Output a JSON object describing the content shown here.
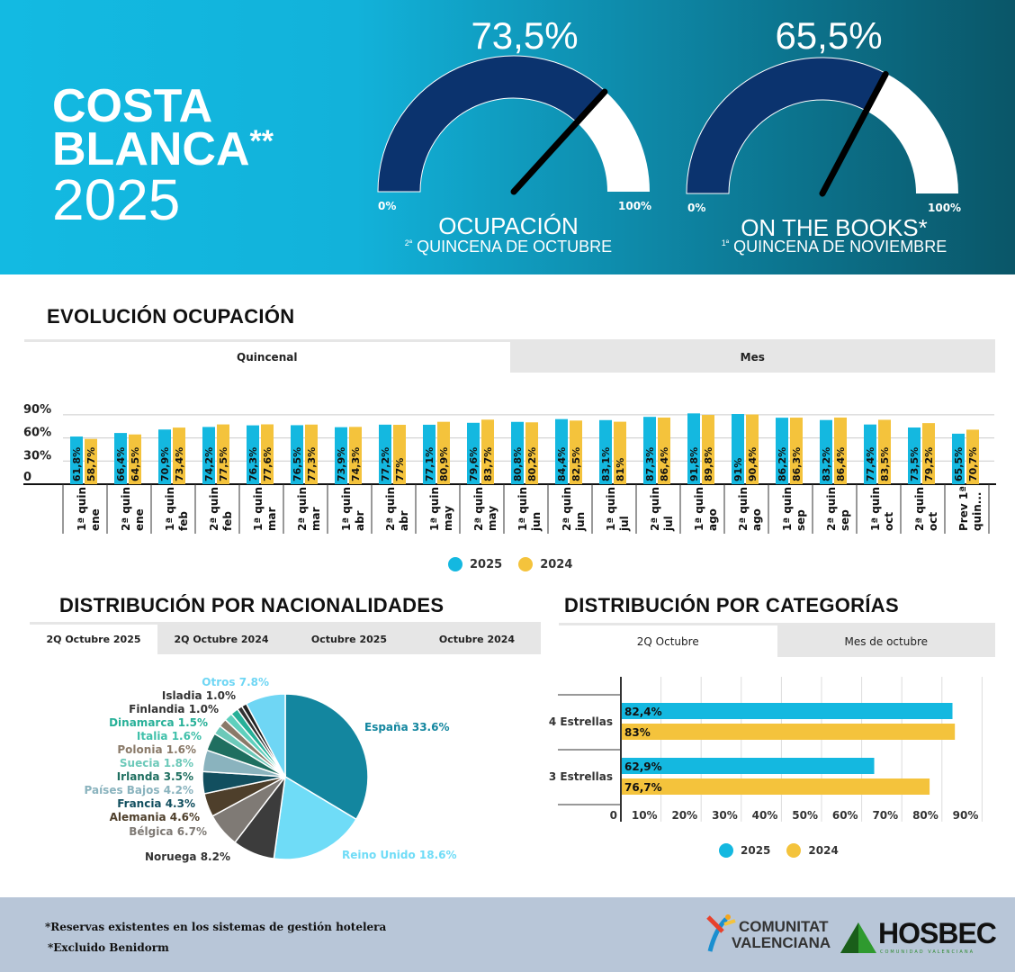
{
  "header": {
    "title_line1": "COSTA",
    "title_line2": "BLANCA",
    "title_mark": "**",
    "title_year": "2025",
    "gauges": [
      {
        "value_label": "73,5%",
        "value": 73.5,
        "min_label": "0%",
        "max_label": "100%",
        "name": "OCUPACIÓN",
        "sub_ord": "2ª",
        "sub": "QUINCENA DE OCTUBRE"
      },
      {
        "value_label": "65,5%",
        "value": 65.5,
        "min_label": "0%",
        "max_label": "100%",
        "name": "ON THE BOOKS*",
        "sub_ord": "1ª",
        "sub": "QUINCENA DE NOVIEMBRE"
      }
    ],
    "colors": {
      "fill": "#0b336e",
      "rest": "#ffffff",
      "needle": "#000000"
    }
  },
  "evolution": {
    "title": "EVOLUCIÓN OCUPACIÓN",
    "tabs": [
      {
        "label": "Quincenal",
        "active": true
      },
      {
        "label": "Mes",
        "active": false
      }
    ]
  },
  "nationalities": {
    "title": "DISTRIBUCIÓN POR NACIONALIDADES",
    "tabs": [
      {
        "label": "2Q Octubre 2025",
        "active": true
      },
      {
        "label": "2Q Octubre 2024"
      },
      {
        "label": "Octubre 2025"
      },
      {
        "label": "Octubre 2024"
      }
    ]
  },
  "categories": {
    "title": "DISTRIBUCIÓN POR CATEGORÍAS",
    "tabs": [
      {
        "label": "2Q Octubre",
        "active": true
      },
      {
        "label": "Mes de octubre"
      }
    ]
  },
  "chart_data": [
    {
      "type": "bar",
      "y_ticks": [
        "0",
        "30%",
        "60%",
        "90%"
      ],
      "ylim": [
        0,
        90
      ],
      "grid": true,
      "legend": "bottom",
      "categories": [
        [
          "1ª quin",
          "ene"
        ],
        [
          "2ª quin",
          "ene"
        ],
        [
          "1ª quin",
          "feb"
        ],
        [
          "2ª quin",
          "feb"
        ],
        [
          "1ª quin",
          "mar"
        ],
        [
          "2ª quin",
          "mar"
        ],
        [
          "1ª quin",
          "abr"
        ],
        [
          "2ª quin",
          "abr"
        ],
        [
          "1ª quin",
          "may"
        ],
        [
          "2ª quin",
          "may"
        ],
        [
          "1ª quin",
          "jun"
        ],
        [
          "2ª quin",
          "jun"
        ],
        [
          "1ª quin",
          "jul"
        ],
        [
          "2ª quin",
          "jul"
        ],
        [
          "1ª quin",
          "ago"
        ],
        [
          "2ª quin",
          "ago"
        ],
        [
          "1ª quin",
          "sep"
        ],
        [
          "2ª quin",
          "sep"
        ],
        [
          "1ª quin",
          "oct"
        ],
        [
          "2ª quin",
          "oct"
        ],
        [
          "Prev 1ª",
          "quin..."
        ]
      ],
      "series": [
        {
          "name": "2025",
          "color": "#14b8e0",
          "values": [
            61.8,
            66.4,
            70.9,
            74.2,
            76.3,
            76.5,
            73.9,
            77.2,
            77.1,
            79.6,
            80.8,
            84.4,
            83.1,
            87.3,
            91.8,
            91,
            86.2,
            83.2,
            77.4,
            73.5,
            65.5
          ],
          "labels": [
            "61,8%",
            "66,4%",
            "70,9%",
            "74,2%",
            "76,3%",
            "76,5%",
            "73,9%",
            "77,2%",
            "77,1%",
            "79,6%",
            "80,8%",
            "84,4%",
            "83,1%",
            "87,3%",
            "91,8%",
            "91%",
            "86,2%",
            "83,2%",
            "77,4%",
            "73,5%",
            "65,5%"
          ]
        },
        {
          "name": "2024",
          "color": "#f4c33c",
          "values": [
            58.7,
            64.5,
            73.4,
            77.5,
            77.6,
            77.3,
            74.3,
            77,
            80.9,
            83.7,
            80.2,
            82.5,
            81,
            86.4,
            89.8,
            90.4,
            86.3,
            86.4,
            83.5,
            79.2,
            70.7
          ],
          "labels": [
            "58,7%",
            "64,5%",
            "73,4%",
            "77,5%",
            "77,6%",
            "77,3%",
            "74,3%",
            "77%",
            "80,9%",
            "83,7%",
            "80,2%",
            "82,5%",
            "81%",
            "86,4%",
            "89,8%",
            "90,4%",
            "86,3%",
            "86,4%",
            "83,5%",
            "79,2%",
            "70,7%"
          ]
        }
      ]
    },
    {
      "type": "pie",
      "slices": [
        {
          "label": "España 33.6%",
          "value": 33.6,
          "color": "#13869f"
        },
        {
          "label": "Reino Unido 18.6%",
          "value": 18.6,
          "color": "#6fdcf7"
        },
        {
          "label": "Noruega 8.2%",
          "value": 8.2,
          "color": "#3c3c3c"
        },
        {
          "label": "Bélgica 6.7%",
          "value": 6.7,
          "color": "#7f7a75"
        },
        {
          "label": "Alemania 4.6%",
          "value": 4.6,
          "color": "#4e3f2b"
        },
        {
          "label": "Francia 4.3%",
          "value": 4.3,
          "color": "#124f5f"
        },
        {
          "label": "Países Bajos 4.2%",
          "value": 4.2,
          "color": "#8ab3be"
        },
        {
          "label": "Irlanda 3.5%",
          "value": 3.5,
          "color": "#1f6f60"
        },
        {
          "label": "Suecia 1.8%",
          "value": 1.8,
          "color": "#6cc9b9"
        },
        {
          "label": "Polonia 1.6%",
          "value": 1.6,
          "color": "#8a7a69"
        },
        {
          "label": "Italia 1.6%",
          "value": 1.6,
          "color": "#5fd0bd"
        },
        {
          "label": "Dinamarca 1.5%",
          "value": 1.5,
          "color": "#27b098"
        },
        {
          "label": "Finlandia 1.0%",
          "value": 1.0,
          "color": "#333333"
        },
        {
          "label": "Isladia 1.0%",
          "value": 1.0,
          "color": "#222222"
        },
        {
          "label": "Otros 7.8%",
          "value": 7.8,
          "color": "#6fd6f4"
        }
      ]
    },
    {
      "type": "bar",
      "orientation": "horizontal",
      "categories": [
        "4 Estrellas",
        "3 Estrellas"
      ],
      "x_ticks": [
        "0",
        "10%",
        "20%",
        "30%",
        "40%",
        "50%",
        "60%",
        "70%",
        "80%",
        "90%"
      ],
      "xlim": [
        0,
        90
      ],
      "grid": true,
      "legend": "bottom",
      "series": [
        {
          "name": "2025",
          "color": "#14b8e0",
          "values": [
            82.4,
            62.9
          ],
          "labels": [
            "82,4%",
            "62,9%"
          ]
        },
        {
          "name": "2024",
          "color": "#f4c33c",
          "values": [
            83,
            76.7
          ],
          "labels": [
            "83%",
            "76,7%"
          ]
        }
      ]
    }
  ],
  "footer": {
    "notes": [
      "*Reservas existentes en los sistemas de gestión hotelera",
      "*Excluido Benidorm"
    ],
    "logos": {
      "cv_line1": "COMUNITAT",
      "cv_line2": "VALENCIANA",
      "hosbec": "HOSBEC",
      "hosbec_sub": "COMUNIDAD VALENCIANA"
    }
  }
}
